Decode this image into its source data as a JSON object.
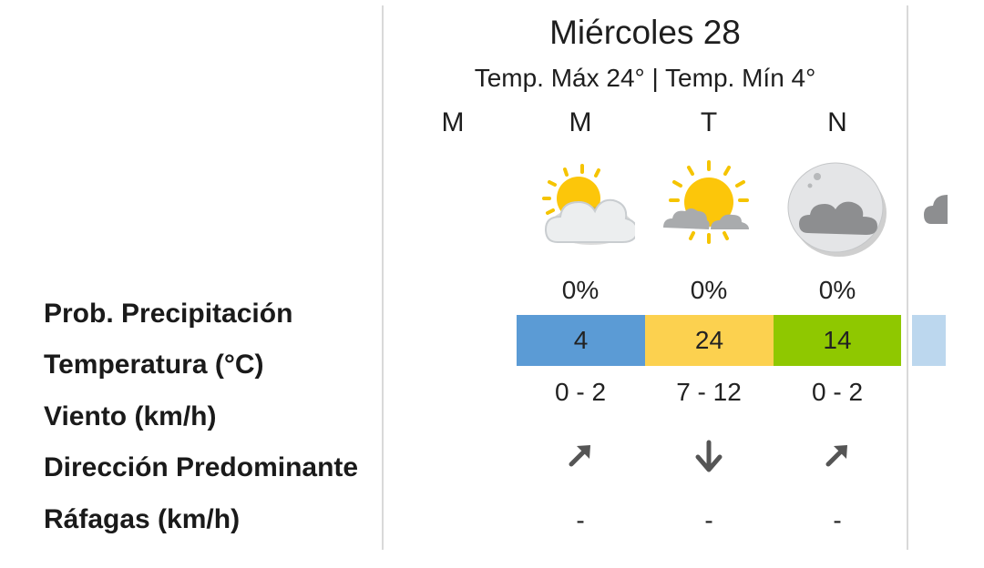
{
  "day": {
    "title": "Miércoles 28",
    "subtitle": "Temp. Máx 24° | Temp. Mín 4°"
  },
  "row_labels": {
    "precip": "Prob. Precipitación",
    "temp": "Temperatura (°C)",
    "wind": "Viento (km/h)",
    "direction": "Dirección Predominante",
    "gusts": "Ráfagas (km/h)"
  },
  "periods": [
    {
      "label": "M"
    },
    {
      "label": "M",
      "icon": "sun-behind-cloud-icon",
      "precip": "0%",
      "temp": "4",
      "temp_color": "#5b9bd5",
      "wind": "0 - 2",
      "direction_icon": "arrow-northeast-icon",
      "gusts": "-"
    },
    {
      "label": "T",
      "icon": "sun-with-clouds-icon",
      "precip": "0%",
      "temp": "24",
      "temp_color": "#fcd14f",
      "wind": "7 - 12",
      "direction_icon": "arrow-south-icon",
      "gusts": "-"
    },
    {
      "label": "N",
      "icon": "moon-with-cloud-icon",
      "precip": "0%",
      "temp": "14",
      "temp_color": "#8fc800",
      "wind": "0 - 2",
      "direction_icon": "arrow-northeast-icon",
      "gusts": "-"
    }
  ],
  "next_column": {
    "temp_color": "#bcd7ee",
    "icon": "cloud-icon"
  }
}
